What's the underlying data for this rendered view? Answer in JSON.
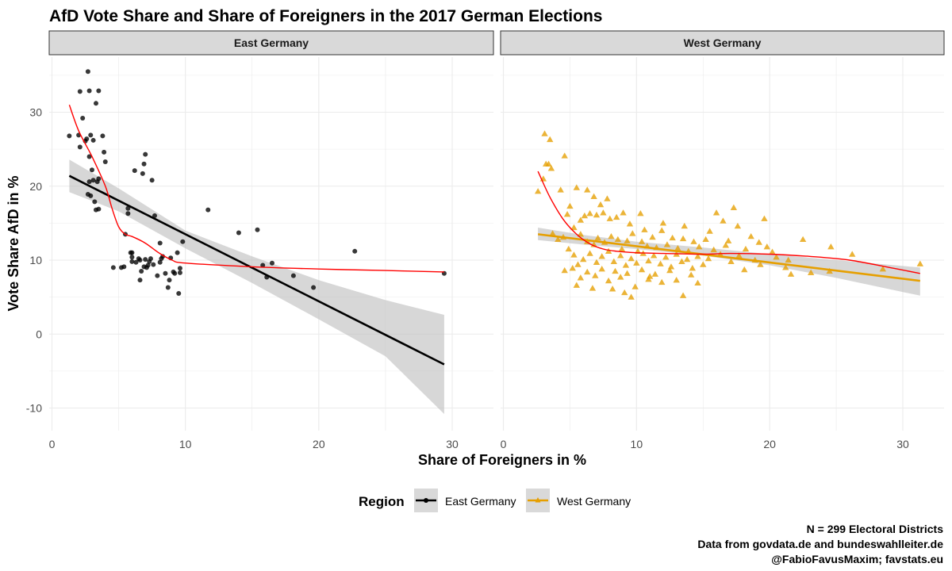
{
  "chart_data": {
    "type": "scatter",
    "title": "AfD Vote Share and Share of Foreigners in the 2017 German Elections",
    "xlabel": "Share of Foreigners in %",
    "ylabel": "Vote Share AfD in %",
    "xlim": [
      0,
      32
    ],
    "ylim": [
      -12,
      36
    ],
    "x_ticks": [
      0,
      10,
      20,
      30
    ],
    "y_ticks": [
      -10,
      0,
      10,
      20,
      30
    ],
    "grid": true,
    "legend": {
      "title": "Region",
      "position": "bottom",
      "entries": [
        "East Germany",
        "West Germany"
      ]
    },
    "caption": [
      "N = 299 Electoral Districts",
      "Data from govdata.de and bundeswahlleiter.de",
      "@FabioFavusMaxim; favstats.eu"
    ],
    "colors": {
      "east": "#000000",
      "west": "#E69F00",
      "loess": "#ff0000",
      "band": "#bfbfbf",
      "strip": "#d9d9d9"
    },
    "panels": [
      {
        "name": "East Germany",
        "marker": "circle",
        "points": [
          [
            1.3,
            26.8
          ],
          [
            2.1,
            32.8
          ],
          [
            2.1,
            25.3
          ],
          [
            2.3,
            29.2
          ],
          [
            2.7,
            35.5
          ],
          [
            2.6,
            26.4
          ],
          [
            2.8,
            32.9
          ],
          [
            3.3,
            31.2
          ],
          [
            3.5,
            32.9
          ],
          [
            2.0,
            26.9
          ],
          [
            2.5,
            26.1
          ],
          [
            2.9,
            26.9
          ],
          [
            3.1,
            26.2
          ],
          [
            2.8,
            24.0
          ],
          [
            3.0,
            22.2
          ],
          [
            3.1,
            20.8
          ],
          [
            2.8,
            20.6
          ],
          [
            3.5,
            21.0
          ],
          [
            3.8,
            26.8
          ],
          [
            3.9,
            24.6
          ],
          [
            4.0,
            23.3
          ],
          [
            2.7,
            18.9
          ],
          [
            2.9,
            18.7
          ],
          [
            3.2,
            17.9
          ],
          [
            3.3,
            16.8
          ],
          [
            3.5,
            16.9
          ],
          [
            3.4,
            20.6
          ],
          [
            4.6,
            9.0
          ],
          [
            5.2,
            9.0
          ],
          [
            5.4,
            9.1
          ],
          [
            5.5,
            13.5
          ],
          [
            5.7,
            16.3
          ],
          [
            5.7,
            17.0
          ],
          [
            5.9,
            11.0
          ],
          [
            6.0,
            11.0
          ],
          [
            6.0,
            10.4
          ],
          [
            6.0,
            9.8
          ],
          [
            6.2,
            22.1
          ],
          [
            6.3,
            9.7
          ],
          [
            6.5,
            10.2
          ],
          [
            6.6,
            10.0
          ],
          [
            6.7,
            8.5
          ],
          [
            6.6,
            7.3
          ],
          [
            6.8,
            21.7
          ],
          [
            6.9,
            23.0
          ],
          [
            7.0,
            24.3
          ],
          [
            6.9,
            9.1
          ],
          [
            7.1,
            9.0
          ],
          [
            7.0,
            10.1
          ],
          [
            7.2,
            9.3
          ],
          [
            7.3,
            9.8
          ],
          [
            7.4,
            10.2
          ],
          [
            7.5,
            20.8
          ],
          [
            7.7,
            16.0
          ],
          [
            7.6,
            9.4
          ],
          [
            7.9,
            7.9
          ],
          [
            8.1,
            12.3
          ],
          [
            8.2,
            10.2
          ],
          [
            8.1,
            9.7
          ],
          [
            8.3,
            10.5
          ],
          [
            8.5,
            8.2
          ],
          [
            8.7,
            6.3
          ],
          [
            8.9,
            10.3
          ],
          [
            8.8,
            7.3
          ],
          [
            9.1,
            8.4
          ],
          [
            9.2,
            8.2
          ],
          [
            9.4,
            11.0
          ],
          [
            9.5,
            5.5
          ],
          [
            9.6,
            8.9
          ],
          [
            9.6,
            8.3
          ],
          [
            9.8,
            12.5
          ],
          [
            11.7,
            16.8
          ],
          [
            14.0,
            13.7
          ],
          [
            15.4,
            14.1
          ],
          [
            15.8,
            9.3
          ],
          [
            16.1,
            7.7
          ],
          [
            16.5,
            9.6
          ],
          [
            18.1,
            7.9
          ],
          [
            19.6,
            6.3
          ],
          [
            22.7,
            11.2
          ],
          [
            29.4,
            8.2
          ]
        ],
        "regression": {
          "x": [
            1.3,
            29.4
          ],
          "y": [
            21.4,
            -4.1
          ]
        },
        "band": {
          "x": [
            1.3,
            5.0,
            10.0,
            15.0,
            20.0,
            25.0,
            29.4
          ],
          "lower": [
            19.2,
            16.6,
            11.6,
            6.9,
            2.0,
            -3.0,
            -10.8
          ],
          "upper": [
            23.6,
            19.7,
            14.0,
            10.5,
            7.3,
            4.6,
            2.6
          ]
        },
        "loess": {
          "x": [
            1.3,
            2.0,
            3.0,
            4.0,
            4.5,
            5.0,
            5.5,
            6.0,
            7.0,
            8.0,
            9.0,
            10.0,
            15.0,
            20.0,
            25.0,
            29.4
          ],
          "y": [
            31.0,
            27.5,
            24.0,
            20.0,
            17.0,
            14.5,
            13.5,
            13.2,
            12.3,
            11.0,
            10.0,
            9.6,
            9.1,
            8.8,
            8.6,
            8.4
          ]
        }
      },
      {
        "name": "West Germany",
        "marker": "triangle",
        "points": [
          [
            2.6,
            19.3
          ],
          [
            3.0,
            21.0
          ],
          [
            3.1,
            27.1
          ],
          [
            3.2,
            23.0
          ],
          [
            3.4,
            23.0
          ],
          [
            3.5,
            26.3
          ],
          [
            3.6,
            22.4
          ],
          [
            4.6,
            24.1
          ],
          [
            5.0,
            17.3
          ],
          [
            4.3,
            19.5
          ],
          [
            4.8,
            16.2
          ],
          [
            5.5,
            19.8
          ],
          [
            6.3,
            19.5
          ],
          [
            6.8,
            18.6
          ],
          [
            7.3,
            17.5
          ],
          [
            7.8,
            18.3
          ],
          [
            5.8,
            15.4
          ],
          [
            6.1,
            16.0
          ],
          [
            6.5,
            16.3
          ],
          [
            7.0,
            16.1
          ],
          [
            7.5,
            16.4
          ],
          [
            8.0,
            15.6
          ],
          [
            8.5,
            15.8
          ],
          [
            9.0,
            16.4
          ],
          [
            9.5,
            14.9
          ],
          [
            10.3,
            16.3
          ],
          [
            10.6,
            14.1
          ],
          [
            3.7,
            13.6
          ],
          [
            4.1,
            12.8
          ],
          [
            4.5,
            13.1
          ],
          [
            5.3,
            14.4
          ],
          [
            5.8,
            13.5
          ],
          [
            6.3,
            12.5
          ],
          [
            6.8,
            12.1
          ],
          [
            7.1,
            13.0
          ],
          [
            7.6,
            12.4
          ],
          [
            8.1,
            13.2
          ],
          [
            8.6,
            12.8
          ],
          [
            8.9,
            11.5
          ],
          [
            9.3,
            12.6
          ],
          [
            9.7,
            13.6
          ],
          [
            10.1,
            11.2
          ],
          [
            10.4,
            12.5
          ],
          [
            10.8,
            11.9
          ],
          [
            11.2,
            13.1
          ],
          [
            11.5,
            11.7
          ],
          [
            11.9,
            14.0
          ],
          [
            12.3,
            12.1
          ],
          [
            12.7,
            13.0
          ],
          [
            13.1,
            11.6
          ],
          [
            13.5,
            12.9
          ],
          [
            13.9,
            11.2
          ],
          [
            14.3,
            12.5
          ],
          [
            14.7,
            11.8
          ],
          [
            4.9,
            11.5
          ],
          [
            5.3,
            10.7
          ],
          [
            5.6,
            9.4
          ],
          [
            6.0,
            10.1
          ],
          [
            6.5,
            10.9
          ],
          [
            7.0,
            9.7
          ],
          [
            7.4,
            10.5
          ],
          [
            7.9,
            11.2
          ],
          [
            8.3,
            9.8
          ],
          [
            8.8,
            10.6
          ],
          [
            9.2,
            9.3
          ],
          [
            9.6,
            10.2
          ],
          [
            10.0,
            9.6
          ],
          [
            10.5,
            10.9
          ],
          [
            10.9,
            9.9
          ],
          [
            11.3,
            10.6
          ],
          [
            11.8,
            9.5
          ],
          [
            12.2,
            10.4
          ],
          [
            12.6,
            9.1
          ],
          [
            13.0,
            10.8
          ],
          [
            13.4,
            9.8
          ],
          [
            13.8,
            10.1
          ],
          [
            14.2,
            8.9
          ],
          [
            14.6,
            10.5
          ],
          [
            15.0,
            9.4
          ],
          [
            15.4,
            10.2
          ],
          [
            4.6,
            8.6
          ],
          [
            5.2,
            8.9
          ],
          [
            5.8,
            7.6
          ],
          [
            6.3,
            8.4
          ],
          [
            6.9,
            7.9
          ],
          [
            7.4,
            8.8
          ],
          [
            7.9,
            7.2
          ],
          [
            8.4,
            8.5
          ],
          [
            8.8,
            7.7
          ],
          [
            9.3,
            8.2
          ],
          [
            9.9,
            6.4
          ],
          [
            10.4,
            8.7
          ],
          [
            10.9,
            7.4
          ],
          [
            11.4,
            8.1
          ],
          [
            11.9,
            7.0
          ],
          [
            12.5,
            8.6
          ],
          [
            13.0,
            7.3
          ],
          [
            13.5,
            5.2
          ],
          [
            14.1,
            8.0
          ],
          [
            14.6,
            6.9
          ],
          [
            5.5,
            6.6
          ],
          [
            6.7,
            6.2
          ],
          [
            8.2,
            6.1
          ],
          [
            9.1,
            5.6
          ],
          [
            9.6,
            5.0
          ],
          [
            11.0,
            7.8
          ],
          [
            15.5,
            13.9
          ],
          [
            16.0,
            16.4
          ],
          [
            16.5,
            15.3
          ],
          [
            16.9,
            12.6
          ],
          [
            17.3,
            17.1
          ],
          [
            17.6,
            14.6
          ],
          [
            18.2,
            11.5
          ],
          [
            18.6,
            13.2
          ],
          [
            19.2,
            12.4
          ],
          [
            19.6,
            15.6
          ],
          [
            20.2,
            11.1
          ],
          [
            15.8,
            11.4
          ],
          [
            16.3,
            10.8
          ],
          [
            16.7,
            12.0
          ],
          [
            17.1,
            9.8
          ],
          [
            17.7,
            10.6
          ],
          [
            18.1,
            8.7
          ],
          [
            18.9,
            10.0
          ],
          [
            19.3,
            9.4
          ],
          [
            19.8,
            11.8
          ],
          [
            20.5,
            10.4
          ],
          [
            21.2,
            9.0
          ],
          [
            21.6,
            8.1
          ],
          [
            22.5,
            12.8
          ],
          [
            23.1,
            8.3
          ],
          [
            24.5,
            8.5
          ],
          [
            24.6,
            11.8
          ],
          [
            26.2,
            10.8
          ],
          [
            28.5,
            8.8
          ],
          [
            31.3,
            9.5
          ],
          [
            21.4,
            10.0
          ],
          [
            15.2,
            12.8
          ],
          [
            12.0,
            15.0
          ],
          [
            13.6,
            14.6
          ]
        ],
        "regression": {
          "x": [
            2.6,
            31.3
          ],
          "y": [
            13.5,
            7.2
          ]
        },
        "band": {
          "x": [
            2.6,
            6.0,
            10.0,
            15.0,
            20.0,
            25.0,
            31.3
          ],
          "lower": [
            12.7,
            12.1,
            11.5,
            10.6,
            9.3,
            7.6,
            5.2
          ],
          "upper": [
            14.4,
            13.4,
            12.5,
            11.7,
            10.8,
            10.0,
            9.0
          ]
        },
        "loess": {
          "x": [
            2.6,
            3.5,
            4.5,
            5.5,
            6.5,
            7.5,
            8.5,
            10.0,
            12.0,
            15.0,
            17.0,
            20.0,
            23.0,
            26.0,
            29.0,
            31.3
          ],
          "y": [
            22.0,
            18.5,
            15.5,
            13.5,
            12.2,
            11.5,
            11.2,
            11.0,
            10.9,
            10.8,
            10.9,
            10.8,
            10.5,
            10.0,
            9.0,
            8.2
          ]
        }
      }
    ]
  }
}
